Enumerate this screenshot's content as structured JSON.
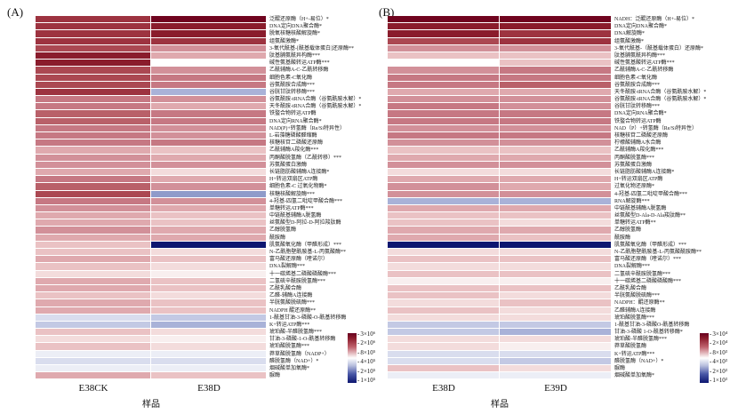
{
  "chart_data": [
    {
      "type": "heatmap",
      "panel_label": "(A)",
      "categories": [
        "E38CK",
        "E38D"
      ],
      "xlabel": "样品",
      "legend_position": "bottom-right",
      "colorbar": {
        "ticks": [
          "3×10⁶",
          "2×10⁶",
          "8×10⁵",
          "4×10⁵",
          "2×10⁵",
          "1×10⁵"
        ],
        "high_color": "#67001f",
        "mid_color": "#ffffff",
        "low_color": "#0d1670"
      },
      "rows": [
        "泛醌还原酶（H+-易位）*",
        "DNA定向DNA聚合酶*",
        "脱氧核糖核酸解旋酶*",
        "组氨酸激酶*",
        "3-氧代酰基-[酰基载体蛋白]还原酶**",
        "肽基脯氨酰异构酶***",
        "碱性氨基酸转运ATP酶***",
        "乙酰辅酶A-C-乙酰转移酶",
        "细胞色素-C氧化酶",
        "谷氨酰胺合成酶***",
        "谷胱甘肽转移酶***",
        "谷氨酰胺-tRNA合酶（谷氨酰胺水解）*",
        "天冬酰胺-tRNA合酶（谷氨酰胺水解）*",
        "铁螯合物转运ATP酶",
        "DNA定向RNA聚合酶*",
        "NAD(P)+转氢酶（Re/Si特异性）",
        "L-岩藻糖磷酸醛缩酶",
        "核糖核苷二磷酸还原酶",
        "乙酰辅酶A羧化酶***",
        "丙酮酸脱氢酶（乙酰转移）***",
        "苏氨酸蛋白激酶",
        "长链脂肪酸辅酶A连接酶*",
        "H+转运双扇区ATP酶",
        "细胞色素-C 过氧化物酶*",
        "核糖核酸解旋酶***",
        "4-羟基-四氢二吡啶甲酸合酶***",
        "单糖转运ATP酶***",
        "中链酰基辅酶A脱氢酶",
        "丝氨酸型D-阿拉-D-阿拉羧肽酶",
        "乙醇脱氢酶",
        "酰胺酶",
        "肌氨酸氧化酶（甲醛形成）***",
        "N-乙酰胞壁酰胺基-L-丙氨酸酶**",
        "富马酸还原酶（喹诺尔）",
        "DNA裂解酶***",
        "十一碳烯基二磷酸磷酸酶***",
        "二氢硫辛酰胺脱氢酶***",
        "乙酰乳酸合酶",
        "乙醛-辅酶A连接酶",
        "半胱氨酸脱硫酶***",
        "NADPH 醌还原酶**",
        "1-酰基甘油-3-磷酸-O-酰基转移酶",
        "K+转运ATP酶***",
        "琥珀酸-半醛脱氢酶***",
        "甘油-3-磷酸-1-O-酰基转移酶",
        "琥珀酸脱氢酶***",
        "莽草酸脱氢酶（NADP+）",
        "醛脱氢酶（NAD+）*",
        "烟碱酸单加氧酶*",
        "脲酶"
      ],
      "cell_colors": [
        [
          "#9d3340",
          "#70041f"
        ],
        [
          "#9d3340",
          "#8a1c2c"
        ],
        [
          "#9d3340",
          "#8a1c2c"
        ],
        [
          "#9d3340",
          "#9d3340"
        ],
        [
          "#ab4852",
          "#d29099"
        ],
        [
          "#8a1c2c",
          "#dfa9ae"
        ],
        [
          "#8a1c2c",
          "#ffffff"
        ],
        [
          "#ab4852",
          "#d29099"
        ],
        [
          "#ab4852",
          "#c67883"
        ],
        [
          "#ab4852",
          "#c67883"
        ],
        [
          "#9d3340",
          "#a9b2d8"
        ],
        [
          "#c67883",
          "#d29099"
        ],
        [
          "#c67883",
          "#dfa9ae"
        ],
        [
          "#b96069",
          "#c67883"
        ],
        [
          "#b96069",
          "#c67883"
        ],
        [
          "#c67883",
          "#d29099"
        ],
        [
          "#c67883",
          "#d29099"
        ],
        [
          "#c67883",
          "#c67883"
        ],
        [
          "#dfa9ae",
          "#eac2c4"
        ],
        [
          "#d29099",
          "#dfa9ae"
        ],
        [
          "#d29099",
          "#d29099"
        ],
        [
          "#dfa9ae",
          "#f3dcdc"
        ],
        [
          "#c67883",
          "#dfa9ae"
        ],
        [
          "#b96069",
          "#d29099"
        ],
        [
          "#ab4852",
          "#8f9bca"
        ],
        [
          "#c67883",
          "#d29099"
        ],
        [
          "#d29099",
          "#dfa9ae"
        ],
        [
          "#dfa9ae",
          "#eac2c4"
        ],
        [
          "#dfa9ae",
          "#eac2c4"
        ],
        [
          "#d29099",
          "#dfa9ae"
        ],
        [
          "#dfa9ae",
          "#dfa9ae"
        ],
        [
          "#eac2c4",
          "#0d1670"
        ],
        [
          "#eac2c4",
          "#f3dcdc"
        ],
        [
          "#dfa9ae",
          "#eac2c4"
        ],
        [
          "#eac2c4",
          "#f3dcdc"
        ],
        [
          "#f3dcdc",
          "#f8efef"
        ],
        [
          "#dfa9ae",
          "#eac2c4"
        ],
        [
          "#dfa9ae",
          "#eac2c4"
        ],
        [
          "#eac2c4",
          "#f3dcdc"
        ],
        [
          "#dfa9ae",
          "#eac2c4"
        ],
        [
          "#dfa9ae",
          "#eac2c4"
        ],
        [
          "#d9ddee",
          "#c3c9e4"
        ],
        [
          "#c3c9e4",
          "#a9b2d8"
        ],
        [
          "#eac2c4",
          "#f3dcdc"
        ],
        [
          "#f3dcdc",
          "#f8efef"
        ],
        [
          "#eac2c4",
          "#f3dcdc"
        ],
        [
          "#eceef6",
          "#eceef6"
        ],
        [
          "#d9ddee",
          "#d9ddee"
        ],
        [
          "#eceef6",
          "#eceef6"
        ],
        [
          "#dfa9ae",
          "#eac2c4"
        ]
      ]
    },
    {
      "type": "heatmap",
      "panel_label": "(B)",
      "categories": [
        "E38D",
        "E39D"
      ],
      "xlabel": "样品",
      "legend_position": "bottom-right",
      "colorbar": {
        "ticks": [
          "3×10⁴",
          "2×10⁴",
          "8×10³",
          "4×10³",
          "2×10³",
          "1×10³"
        ],
        "high_color": "#67001f",
        "mid_color": "#ffffff",
        "low_color": "#0d1670"
      },
      "rows": [
        "NADH：泛醌还原酶（H+-易位）*",
        "DNA定向DNA聚合酶*",
        "DNA解旋酶*",
        "组氨酸激酶*",
        "3-氧代酰基-（酰基载体蛋白）还原酶*",
        "肽基脯氨酰异构酶***",
        "碱性氨基酸转运ATP酶***",
        "乙酰辅酶A-C-乙酰转移酶",
        "细胞色素-C氧化酶",
        "谷氨酰胺合成酶***",
        "天冬酰胺-tRNA合酶（谷氨酰胺水解）*",
        "谷氨酰胺-tRNA合酶（谷氨酰胺水解）*",
        "谷胱甘肽转移酶***",
        "DNA定向RNA聚合酶*",
        "铁螯合物转运ATP酶",
        "NAD（P）+转氢酶（Re/Si特异性）",
        "核糖核苷二磷酸还原酶",
        "柠檬酸辅酶A水合酶",
        "乙酰辅酶A羧化酶***",
        "丙酮酸脱氢酶***",
        "苏氨酸蛋白激酶",
        "长链脂肪酸辅酶A连接酶*",
        "H+转运双扇区ATP酶",
        "过氧化物还原酶*",
        "4-羟基-四氢二吡啶甲酸合酶***",
        "RNA解旋酶***",
        "中链酰基辅酶A脱氢酶",
        "丝氨酸型D-Ala-D-Ala羧肽酶**",
        "单糖转运ATP酶**",
        "乙醇脱氢酶",
        "酰胺酶",
        "肌氨酸氧化酶（甲醛形成）***",
        "N-乙酰胞壁酰胺基-L-丙氨酸酰胺酶**",
        "富马酸还原酶（喹诺尔）***",
        "DNA裂解酶***",
        "二氢硫辛酰胺脱氢酶***",
        "十一碳烯基二磷酸磷酸酶***",
        "乙酰乳酸合酶",
        "半胱氨酸脱硫酶***",
        "NADPH：醌还原酶**",
        "乙醛辅酶A连接酶",
        "琥珀酸脱氢酶***",
        "1-酰基甘油-3-磷酸O-酰基转移酶",
        "甘油-3-磷酸 1-O-酰基转移酶*",
        "琥珀酸-半醛脱氢酶***",
        "莽草酸脱氢酶",
        "K+转运ATP酶***",
        "醛脱氢酶（NAD+）*",
        "脲酶",
        "烟碱酸单加氧酶*"
      ],
      "cell_colors": [
        [
          "#70041f",
          "#70041f"
        ],
        [
          "#8a1c2c",
          "#8a1c2c"
        ],
        [
          "#8a1c2c",
          "#9d3340"
        ],
        [
          "#ab4852",
          "#9d3340"
        ],
        [
          "#d29099",
          "#d29099"
        ],
        [
          "#eac2c4",
          "#eac2c4"
        ],
        [
          "#ffffff",
          "#eac2c4"
        ],
        [
          "#d29099",
          "#c67883"
        ],
        [
          "#c67883",
          "#c67883"
        ],
        [
          "#c67883",
          "#b96069"
        ],
        [
          "#dfa9ae",
          "#dfa9ae"
        ],
        [
          "#d29099",
          "#d29099"
        ],
        [
          "#c67883",
          "#d29099"
        ],
        [
          "#c67883",
          "#c67883"
        ],
        [
          "#c67883",
          "#c67883"
        ],
        [
          "#d29099",
          "#d29099"
        ],
        [
          "#c67883",
          "#c67883"
        ],
        [
          "#d29099",
          "#d29099"
        ],
        [
          "#eac2c4",
          "#eac2c4"
        ],
        [
          "#dfa9ae",
          "#dfa9ae"
        ],
        [
          "#d29099",
          "#d29099"
        ],
        [
          "#f3dcdc",
          "#f3dcdc"
        ],
        [
          "#dfa9ae",
          "#dfa9ae"
        ],
        [
          "#d29099",
          "#dfa9ae"
        ],
        [
          "#d29099",
          "#d29099"
        ],
        [
          "#a9b2d8",
          "#a9b2d8"
        ],
        [
          "#dfa9ae",
          "#dfa9ae"
        ],
        [
          "#eac2c4",
          "#eac2c4"
        ],
        [
          "#eac2c4",
          "#f3dcdc"
        ],
        [
          "#dfa9ae",
          "#dfa9ae"
        ],
        [
          "#dfa9ae",
          "#eac2c4"
        ],
        [
          "#0d1670",
          "#0d1670"
        ],
        [
          "#f3dcdc",
          "#f3dcdc"
        ],
        [
          "#eac2c4",
          "#eac2c4"
        ],
        [
          "#f3dcdc",
          "#f3dcdc"
        ],
        [
          "#eac2c4",
          "#eac2c4"
        ],
        [
          "#f8efef",
          "#f8efef"
        ],
        [
          "#eac2c4",
          "#eac2c4"
        ],
        [
          "#eac2c4",
          "#f3dcdc"
        ],
        [
          "#f3dcdc",
          "#eac2c4"
        ],
        [
          "#eac2c4",
          "#f3dcdc"
        ],
        [
          "#f3dcdc",
          "#f3dcdc"
        ],
        [
          "#c3c9e4",
          "#c3c9e4"
        ],
        [
          "#c3c9e4",
          "#a9b2d8"
        ],
        [
          "#f3dcdc",
          "#f3dcdc"
        ],
        [
          "#f3dcdc",
          "#f8efef"
        ],
        [
          "#d9ddee",
          "#d9ddee"
        ],
        [
          "#d9ddee",
          "#c3c9e4"
        ],
        [
          "#eac2c4",
          "#f3dcdc"
        ],
        [
          "#eceef6",
          "#eceef6"
        ]
      ]
    }
  ]
}
